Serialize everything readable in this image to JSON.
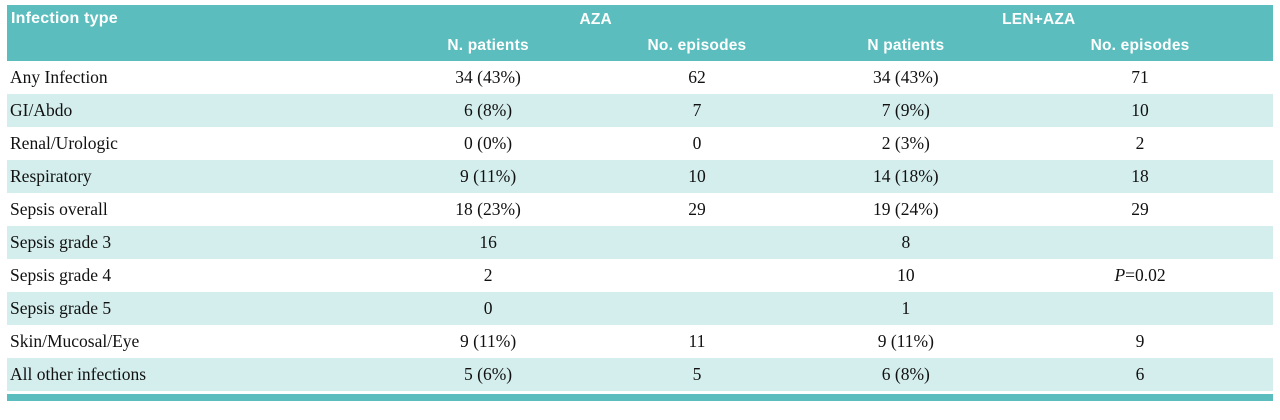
{
  "table": {
    "col1_header": "Infection type",
    "groups": [
      {
        "label": "AZA"
      },
      {
        "label": "LEN+AZA"
      }
    ],
    "subheaders": [
      "N. patients",
      "No. episodes",
      "N patients",
      "No. episodes"
    ],
    "rows": [
      {
        "label": "Any Infection",
        "cells": [
          "34 (43%)",
          "62",
          "34 (43%)",
          "71"
        ]
      },
      {
        "label": "GI/Abdo",
        "cells": [
          "6 (8%)",
          "7",
          "7 (9%)",
          "10"
        ]
      },
      {
        "label": "Renal/Urologic",
        "cells": [
          "0 (0%)",
          "0",
          "2 (3%)",
          "2"
        ]
      },
      {
        "label": "Respiratory",
        "cells": [
          "9 (11%)",
          "10",
          "14 (18%)",
          "18"
        ]
      },
      {
        "label": "Sepsis overall",
        "cells": [
          "18 (23%)",
          "29",
          "19 (24%)",
          "29"
        ]
      },
      {
        "label": "Sepsis grade 3",
        "cells": [
          "16",
          "",
          "8",
          ""
        ]
      },
      {
        "label": "Sepsis grade 4",
        "cells": [
          "2",
          "",
          "10",
          "P=0.02"
        ]
      },
      {
        "label": "Sepsis grade 5",
        "cells": [
          "0",
          "",
          "1",
          ""
        ]
      },
      {
        "label": "Skin/Mucosal/Eye",
        "cells": [
          "9 (11%)",
          "11",
          "9 (11%)",
          "9"
        ]
      },
      {
        "label": "All other infections",
        "cells": [
          "5 (6%)",
          "5",
          "6 (8%)",
          "6"
        ]
      }
    ],
    "colors": {
      "header_teal": "#5bbdbd",
      "row_alt_teal": "#d4eded",
      "header_text": "#ffffff",
      "body_text": "#111111"
    }
  }
}
